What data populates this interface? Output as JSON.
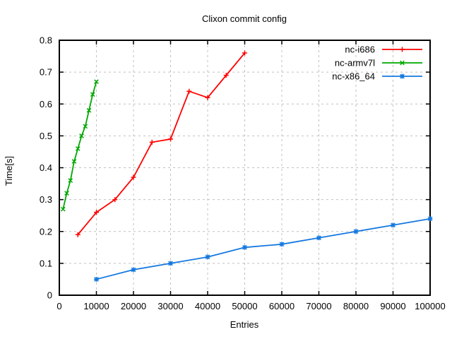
{
  "chart_data": {
    "type": "line",
    "title": "Clixon commit config",
    "xlabel": "Entries",
    "ylabel": "Time[s]",
    "xlim": [
      0,
      100000
    ],
    "ylim": [
      0,
      0.8
    ],
    "grid": true,
    "legend_position": "top-right",
    "x_ticks": [
      0,
      10000,
      20000,
      30000,
      40000,
      50000,
      60000,
      70000,
      80000,
      90000,
      100000
    ],
    "x_tick_labels": [
      "0",
      "10000",
      "20000",
      "30000",
      "40000",
      "50000",
      "60000",
      "70000",
      "80000",
      "90000",
      "100000"
    ],
    "y_ticks": [
      0,
      0.1,
      0.2,
      0.3,
      0.4,
      0.5,
      0.6,
      0.7,
      0.8
    ],
    "y_tick_labels": [
      "0",
      "0.1",
      "0.2",
      "0.3",
      "0.4",
      "0.5",
      "0.6",
      "0.7",
      "0.8"
    ],
    "series": [
      {
        "name": "nc-i686",
        "color": "#ff0000",
        "marker": "plus",
        "points": [
          [
            5000,
            0.19
          ],
          [
            10000,
            0.26
          ],
          [
            15000,
            0.3
          ],
          [
            20000,
            0.37
          ],
          [
            25000,
            0.48
          ],
          [
            30000,
            0.49
          ],
          [
            35000,
            0.64
          ],
          [
            40000,
            0.62
          ],
          [
            45000,
            0.69
          ],
          [
            50000,
            0.76
          ]
        ]
      },
      {
        "name": "nc-armv7l",
        "color": "#00a800",
        "marker": "cross",
        "points": [
          [
            1000,
            0.27
          ],
          [
            2000,
            0.32
          ],
          [
            3000,
            0.36
          ],
          [
            4000,
            0.42
          ],
          [
            5000,
            0.46
          ],
          [
            6000,
            0.5
          ],
          [
            7000,
            0.53
          ],
          [
            8000,
            0.58
          ],
          [
            9000,
            0.63
          ],
          [
            10000,
            0.67
          ]
        ]
      },
      {
        "name": "nc-x86_64",
        "color": "#1478e0",
        "marker": "asterisk",
        "points": [
          [
            10000,
            0.05
          ],
          [
            20000,
            0.08
          ],
          [
            30000,
            0.1
          ],
          [
            40000,
            0.12
          ],
          [
            50000,
            0.15
          ],
          [
            60000,
            0.16
          ],
          [
            70000,
            0.18
          ],
          [
            80000,
            0.2
          ],
          [
            90000,
            0.22
          ],
          [
            100000,
            0.24
          ]
        ]
      }
    ],
    "colors": {
      "background": "#ffffff",
      "grid": "#c0c0c0",
      "axis": "#000000",
      "text": "#000000"
    }
  }
}
